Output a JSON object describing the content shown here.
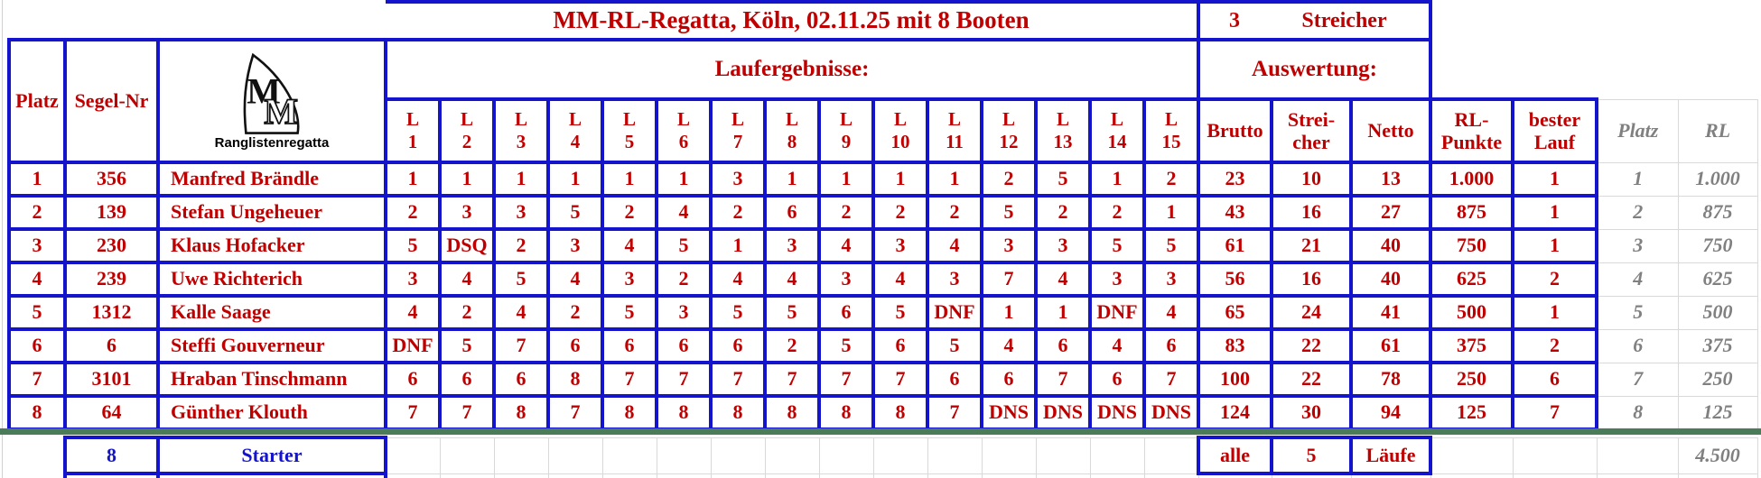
{
  "app": {
    "title": "MM-RL-Regatta, Köln, 02.11.25 mit 8 Booten"
  },
  "header": {
    "streicher_value": "3",
    "streicher_label": "Streicher",
    "results_label": "Laufergebnisse:",
    "evaluation_label": "Auswertung:",
    "logo_caption": "Ranglistenregatta",
    "logo_letter": "M",
    "col_platz": "Platz",
    "col_segel_nr": "Segel-Nr",
    "lauf_prefix": "L",
    "lauf_numbers": [
      "1",
      "2",
      "3",
      "4",
      "5",
      "6",
      "7",
      "8",
      "9",
      "10",
      "11",
      "12",
      "13",
      "14",
      "15"
    ],
    "col_brutto": "Brutto",
    "col_streicher_line1": "Strei-",
    "col_streicher_line2": "cher",
    "col_netto": "Netto",
    "col_rl_punkte_line1": "RL-",
    "col_rl_punkte_line2": "Punkte",
    "col_bester_lauf_line1": "bester",
    "col_bester_lauf_line2": "Lauf",
    "col_platz_outer": "Platz",
    "col_rl_outer": "RL"
  },
  "rows": [
    {
      "platz": "1",
      "segel_nr": "356",
      "name": "Manfred Brändle",
      "laeufe": [
        "1",
        "1",
        "1",
        "1",
        "1",
        "1",
        "3",
        "1",
        "1",
        "1",
        "1",
        "2",
        "5",
        "1",
        "2"
      ],
      "brutto": "23",
      "streicher": "10",
      "netto": "13",
      "rl_punkte": "1.000",
      "bester_lauf": "1",
      "platz_rl": "1",
      "rl": "1.000"
    },
    {
      "platz": "2",
      "segel_nr": "139",
      "name": "Stefan Ungeheuer",
      "laeufe": [
        "2",
        "3",
        "3",
        "5",
        "2",
        "4",
        "2",
        "6",
        "2",
        "2",
        "2",
        "5",
        "2",
        "2",
        "1"
      ],
      "brutto": "43",
      "streicher": "16",
      "netto": "27",
      "rl_punkte": "875",
      "bester_lauf": "1",
      "platz_rl": "2",
      "rl": "875"
    },
    {
      "platz": "3",
      "segel_nr": "230",
      "name": "Klaus Hofacker",
      "laeufe": [
        "5",
        "DSQ",
        "2",
        "3",
        "4",
        "5",
        "1",
        "3",
        "4",
        "3",
        "4",
        "3",
        "3",
        "5",
        "5"
      ],
      "brutto": "61",
      "streicher": "21",
      "netto": "40",
      "rl_punkte": "750",
      "bester_lauf": "1",
      "platz_rl": "3",
      "rl": "750"
    },
    {
      "platz": "4",
      "segel_nr": "239",
      "name": "Uwe Richterich",
      "laeufe": [
        "3",
        "4",
        "5",
        "4",
        "3",
        "2",
        "4",
        "4",
        "3",
        "4",
        "3",
        "7",
        "4",
        "3",
        "3"
      ],
      "brutto": "56",
      "streicher": "16",
      "netto": "40",
      "rl_punkte": "625",
      "bester_lauf": "2",
      "platz_rl": "4",
      "rl": "625"
    },
    {
      "platz": "5",
      "segel_nr": "1312",
      "name": "Kalle Saage",
      "laeufe": [
        "4",
        "2",
        "4",
        "2",
        "5",
        "3",
        "5",
        "5",
        "6",
        "5",
        "DNF",
        "1",
        "1",
        "DNF",
        "4"
      ],
      "brutto": "65",
      "streicher": "24",
      "netto": "41",
      "rl_punkte": "500",
      "bester_lauf": "1",
      "platz_rl": "5",
      "rl": "500"
    },
    {
      "platz": "6",
      "segel_nr": "6",
      "name": "Steffi Gouverneur",
      "laeufe": [
        "DNF",
        "5",
        "7",
        "6",
        "6",
        "6",
        "6",
        "2",
        "5",
        "6",
        "5",
        "4",
        "6",
        "4",
        "6"
      ],
      "brutto": "83",
      "streicher": "22",
      "netto": "61",
      "rl_punkte": "375",
      "bester_lauf": "2",
      "platz_rl": "6",
      "rl": "375"
    },
    {
      "platz": "7",
      "segel_nr": "3101",
      "name": "Hraban Tinschmann",
      "laeufe": [
        "6",
        "6",
        "6",
        "8",
        "7",
        "7",
        "7",
        "7",
        "7",
        "7",
        "6",
        "6",
        "7",
        "6",
        "7"
      ],
      "brutto": "100",
      "streicher": "22",
      "netto": "78",
      "rl_punkte": "250",
      "bester_lauf": "6",
      "platz_rl": "7",
      "rl": "250"
    },
    {
      "platz": "8",
      "segel_nr": "64",
      "name": "Günther Klouth",
      "laeufe": [
        "7",
        "7",
        "8",
        "7",
        "8",
        "8",
        "8",
        "8",
        "8",
        "8",
        "7",
        "DNS",
        "DNS",
        "DNS",
        "DNS"
      ],
      "brutto": "124",
      "streicher": "30",
      "netto": "94",
      "rl_punkte": "125",
      "bester_lauf": "7",
      "platz_rl": "8",
      "rl": "125"
    }
  ],
  "footer": {
    "starter_count": "8",
    "starter_label": "Starter",
    "alle_label": "alle",
    "laufe_count": "5",
    "laufe_label": "Läufe",
    "rl_total": "4.500"
  },
  "colors": {
    "blue": "#1414cc",
    "red": "#c00000",
    "gray": "#808080",
    "green": "#4a7c59",
    "grid": "#d9d9d9"
  }
}
